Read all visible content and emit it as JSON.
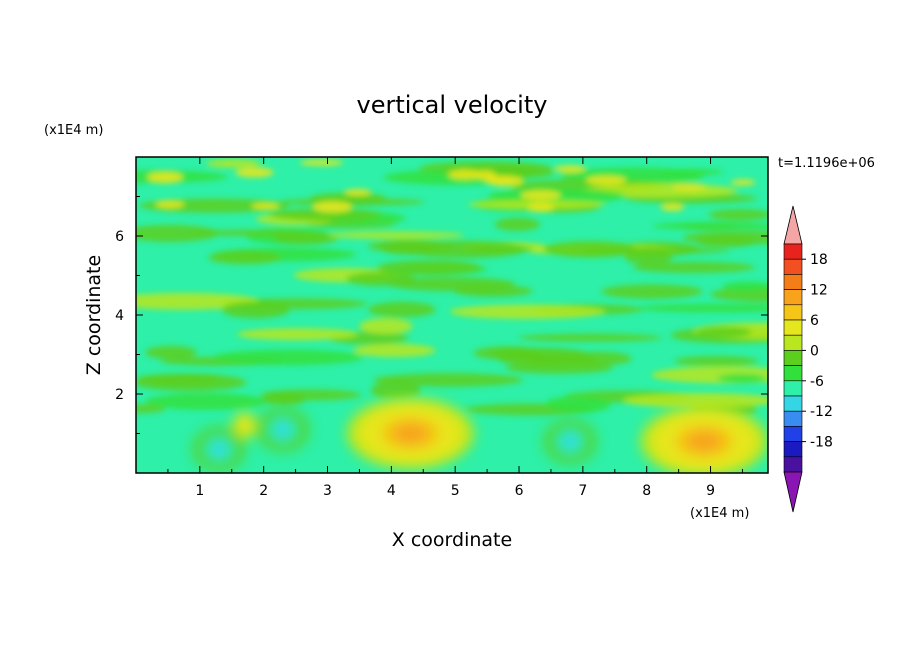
{
  "chart_data": {
    "type": "heatmap",
    "title": "vertical velocity",
    "xlabel": "X coordinate",
    "ylabel": "Z coordinate",
    "x_unit": "(x1E4 m)",
    "y_unit": "(x1E4 m)",
    "time_label": "t=1.1196e+06",
    "xlim": [
      0,
      9.9
    ],
    "ylim": [
      0,
      8
    ],
    "x_ticks": [
      1,
      2,
      3,
      4,
      5,
      6,
      7,
      8,
      9
    ],
    "y_ticks": [
      2,
      4,
      6
    ],
    "colorbar": {
      "ticks": [
        18,
        12,
        6,
        0,
        -6,
        -12,
        -18
      ],
      "levels": [
        21,
        18,
        15,
        12,
        9,
        6,
        3,
        0,
        -3,
        -6,
        -9,
        -12,
        -15,
        -18,
        -21
      ],
      "colors": [
        "#f4a6a6",
        "#e8231e",
        "#f25020",
        "#f57d17",
        "#f7a41c",
        "#f5c518",
        "#e6e61e",
        "#b9e61e",
        "#5ccf1e",
        "#32e03c",
        "#2ef0a8",
        "#34d6e6",
        "#3a8df0",
        "#2040e8",
        "#1a1ac0",
        "#4a10a0",
        "#8b14b4"
      ]
    },
    "features": [
      {
        "type": "updraft",
        "x": 4.3,
        "z": 1.0,
        "peak": 9
      },
      {
        "type": "updraft",
        "x": 8.9,
        "z": 0.8,
        "peak": 9
      },
      {
        "type": "updraft",
        "x": 1.7,
        "z": 1.2,
        "peak": 3
      },
      {
        "type": "downdraft",
        "x": 1.3,
        "z": 0.6,
        "peak": -12
      },
      {
        "type": "downdraft",
        "x": 2.3,
        "z": 1.1,
        "peak": -14
      },
      {
        "type": "downdraft",
        "x": 6.8,
        "z": 0.8,
        "peak": -13
      }
    ]
  }
}
